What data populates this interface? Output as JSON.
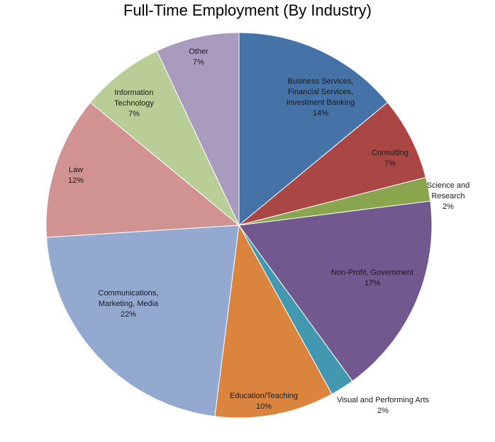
{
  "chart_data": {
    "type": "pie",
    "title": "Full-Time Employment (By Industry)",
    "start": "top, clockwise",
    "slices": [
      {
        "name": "Business Services, Financial Services, Investment Banking",
        "label_lines": [
          "Business Services,",
          "Financial Services,",
          "Investment Banking",
          "14%"
        ],
        "value": 14,
        "color": "#4572A7"
      },
      {
        "name": "Consulting",
        "label_lines": [
          "Consulting",
          "7%"
        ],
        "value": 7,
        "color": "#AA4643"
      },
      {
        "name": "Science and Research",
        "label_lines": [
          "Science and",
          "Research",
          "2%"
        ],
        "value": 2,
        "color": "#89A54E"
      },
      {
        "name": "Non-Profit, Government",
        "label_lines": [
          "Non-Profit, Government",
          "17%"
        ],
        "value": 17,
        "color": "#71588F"
      },
      {
        "name": "Visual and Performing Arts",
        "label_lines": [
          "Visual and Performing Arts",
          "2%"
        ],
        "value": 2,
        "color": "#4198AF"
      },
      {
        "name": "Education/Teaching",
        "label_lines": [
          "Education/Teaching",
          "10%"
        ],
        "value": 10,
        "color": "#DB843D"
      },
      {
        "name": "Communications, Marketing, Media",
        "label_lines": [
          "Communications,",
          "Marketing, Media",
          "22%"
        ],
        "value": 22,
        "color": "#93A9CF"
      },
      {
        "name": "Law",
        "label_lines": [
          "Law",
          "12%"
        ],
        "value": 12,
        "color": "#D19392"
      },
      {
        "name": "Information Technology",
        "label_lines": [
          "Information",
          "Technology",
          "7%"
        ],
        "value": 7,
        "color": "#B9CD96"
      },
      {
        "name": "Other",
        "label_lines": [
          "Other",
          "7%"
        ],
        "value": 7,
        "color": "#A99BBD"
      }
    ]
  }
}
